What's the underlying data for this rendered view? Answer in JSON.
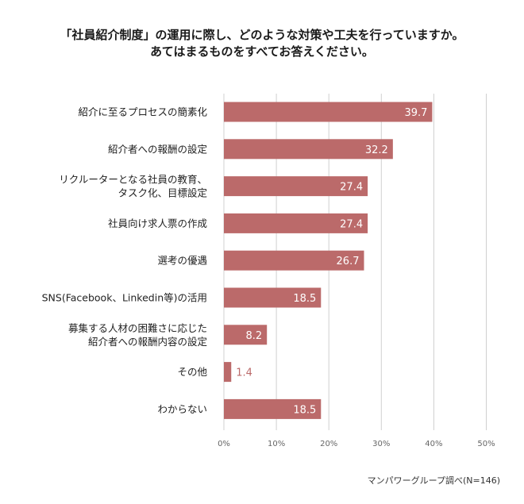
{
  "chart_data": {
    "type": "bar",
    "orientation": "horizontal",
    "title_lines": [
      "「社員紹介制度」の運用に際し、どのような対策や工夫を行っていますか。",
      "あてはまるものをすべてお答えください。"
    ],
    "categories": [
      [
        "紹介に至るプロセスの簡素化"
      ],
      [
        "紹介者への報酬の設定"
      ],
      [
        "リクルーターとなる社員の教育、",
        "タスク化、目標設定"
      ],
      [
        "社員向け求人票の作成"
      ],
      [
        "選考の優遇"
      ],
      [
        "SNS(Facebook、Linkedin等)の活用"
      ],
      [
        "募集する人材の困難さに応じた",
        "紹介者への報酬内容の設定"
      ],
      [
        "その他"
      ],
      [
        "わからない"
      ]
    ],
    "values": [
      39.7,
      32.2,
      27.4,
      27.4,
      26.7,
      18.5,
      8.2,
      1.4,
      18.5
    ],
    "value_labels": [
      "39.7",
      "32.2",
      "27.4",
      "27.4",
      "26.7",
      "18.5",
      "8.2",
      "1.4",
      "18.5"
    ],
    "x_ticks": [
      0,
      10,
      20,
      30,
      40,
      50
    ],
    "x_tick_labels": [
      "0%",
      "10%",
      "20%",
      "30%",
      "40%",
      "50%"
    ],
    "xlim": [
      0,
      50
    ],
    "grid": true,
    "bar_color": "#bb6a6a",
    "source_note": "マンパワーグループ調べ(N=146)"
  }
}
